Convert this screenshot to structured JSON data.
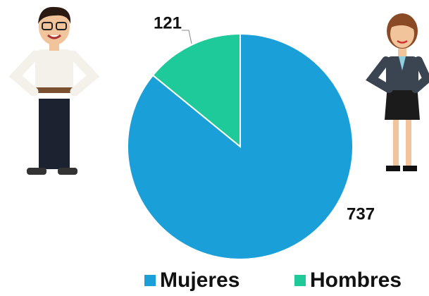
{
  "chart_data": {
    "type": "pie",
    "categories": [
      "Mujeres",
      "Hombres"
    ],
    "values": [
      737,
      121
    ],
    "colors": [
      "#1a9fd9",
      "#1ec99a"
    ]
  }
}
